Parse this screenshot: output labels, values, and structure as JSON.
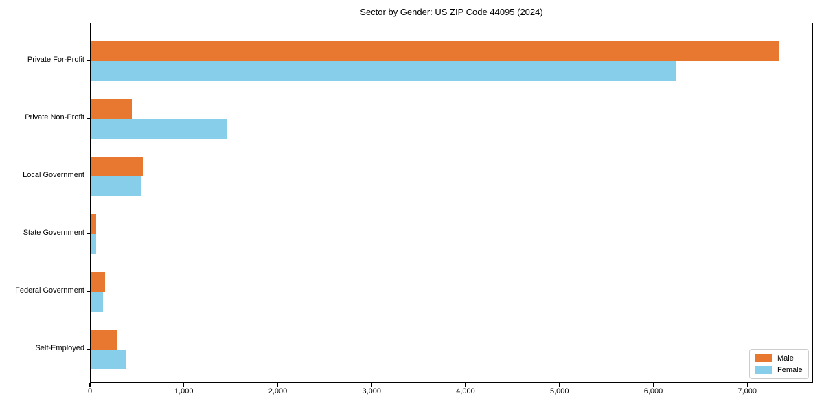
{
  "chart_data": {
    "type": "bar",
    "orientation": "horizontal",
    "title": "Sector by Gender: US ZIP Code 44095 (2024)",
    "categories": [
      "Private For-Profit",
      "Private Non-Profit",
      "Local Government",
      "State Government",
      "Federal Government",
      "Self-Employed"
    ],
    "series": [
      {
        "name": "Male",
        "color": "#e8772f",
        "values": [
          7330,
          435,
          555,
          55,
          155,
          275
        ]
      },
      {
        "name": "Female",
        "color": "#87ceeb",
        "values": [
          6240,
          1450,
          540,
          60,
          130,
          370
        ]
      }
    ],
    "xlabel": "",
    "ylabel": "",
    "xlim": [
      0,
      7700
    ],
    "x_ticks": [
      0,
      1000,
      2000,
      3000,
      4000,
      5000,
      6000,
      7000
    ],
    "x_tick_labels": [
      "0",
      "1,000",
      "2,000",
      "3,000",
      "4,000",
      "5,000",
      "6,000",
      "7,000"
    ],
    "grid": false,
    "legend_position": "lower right"
  }
}
